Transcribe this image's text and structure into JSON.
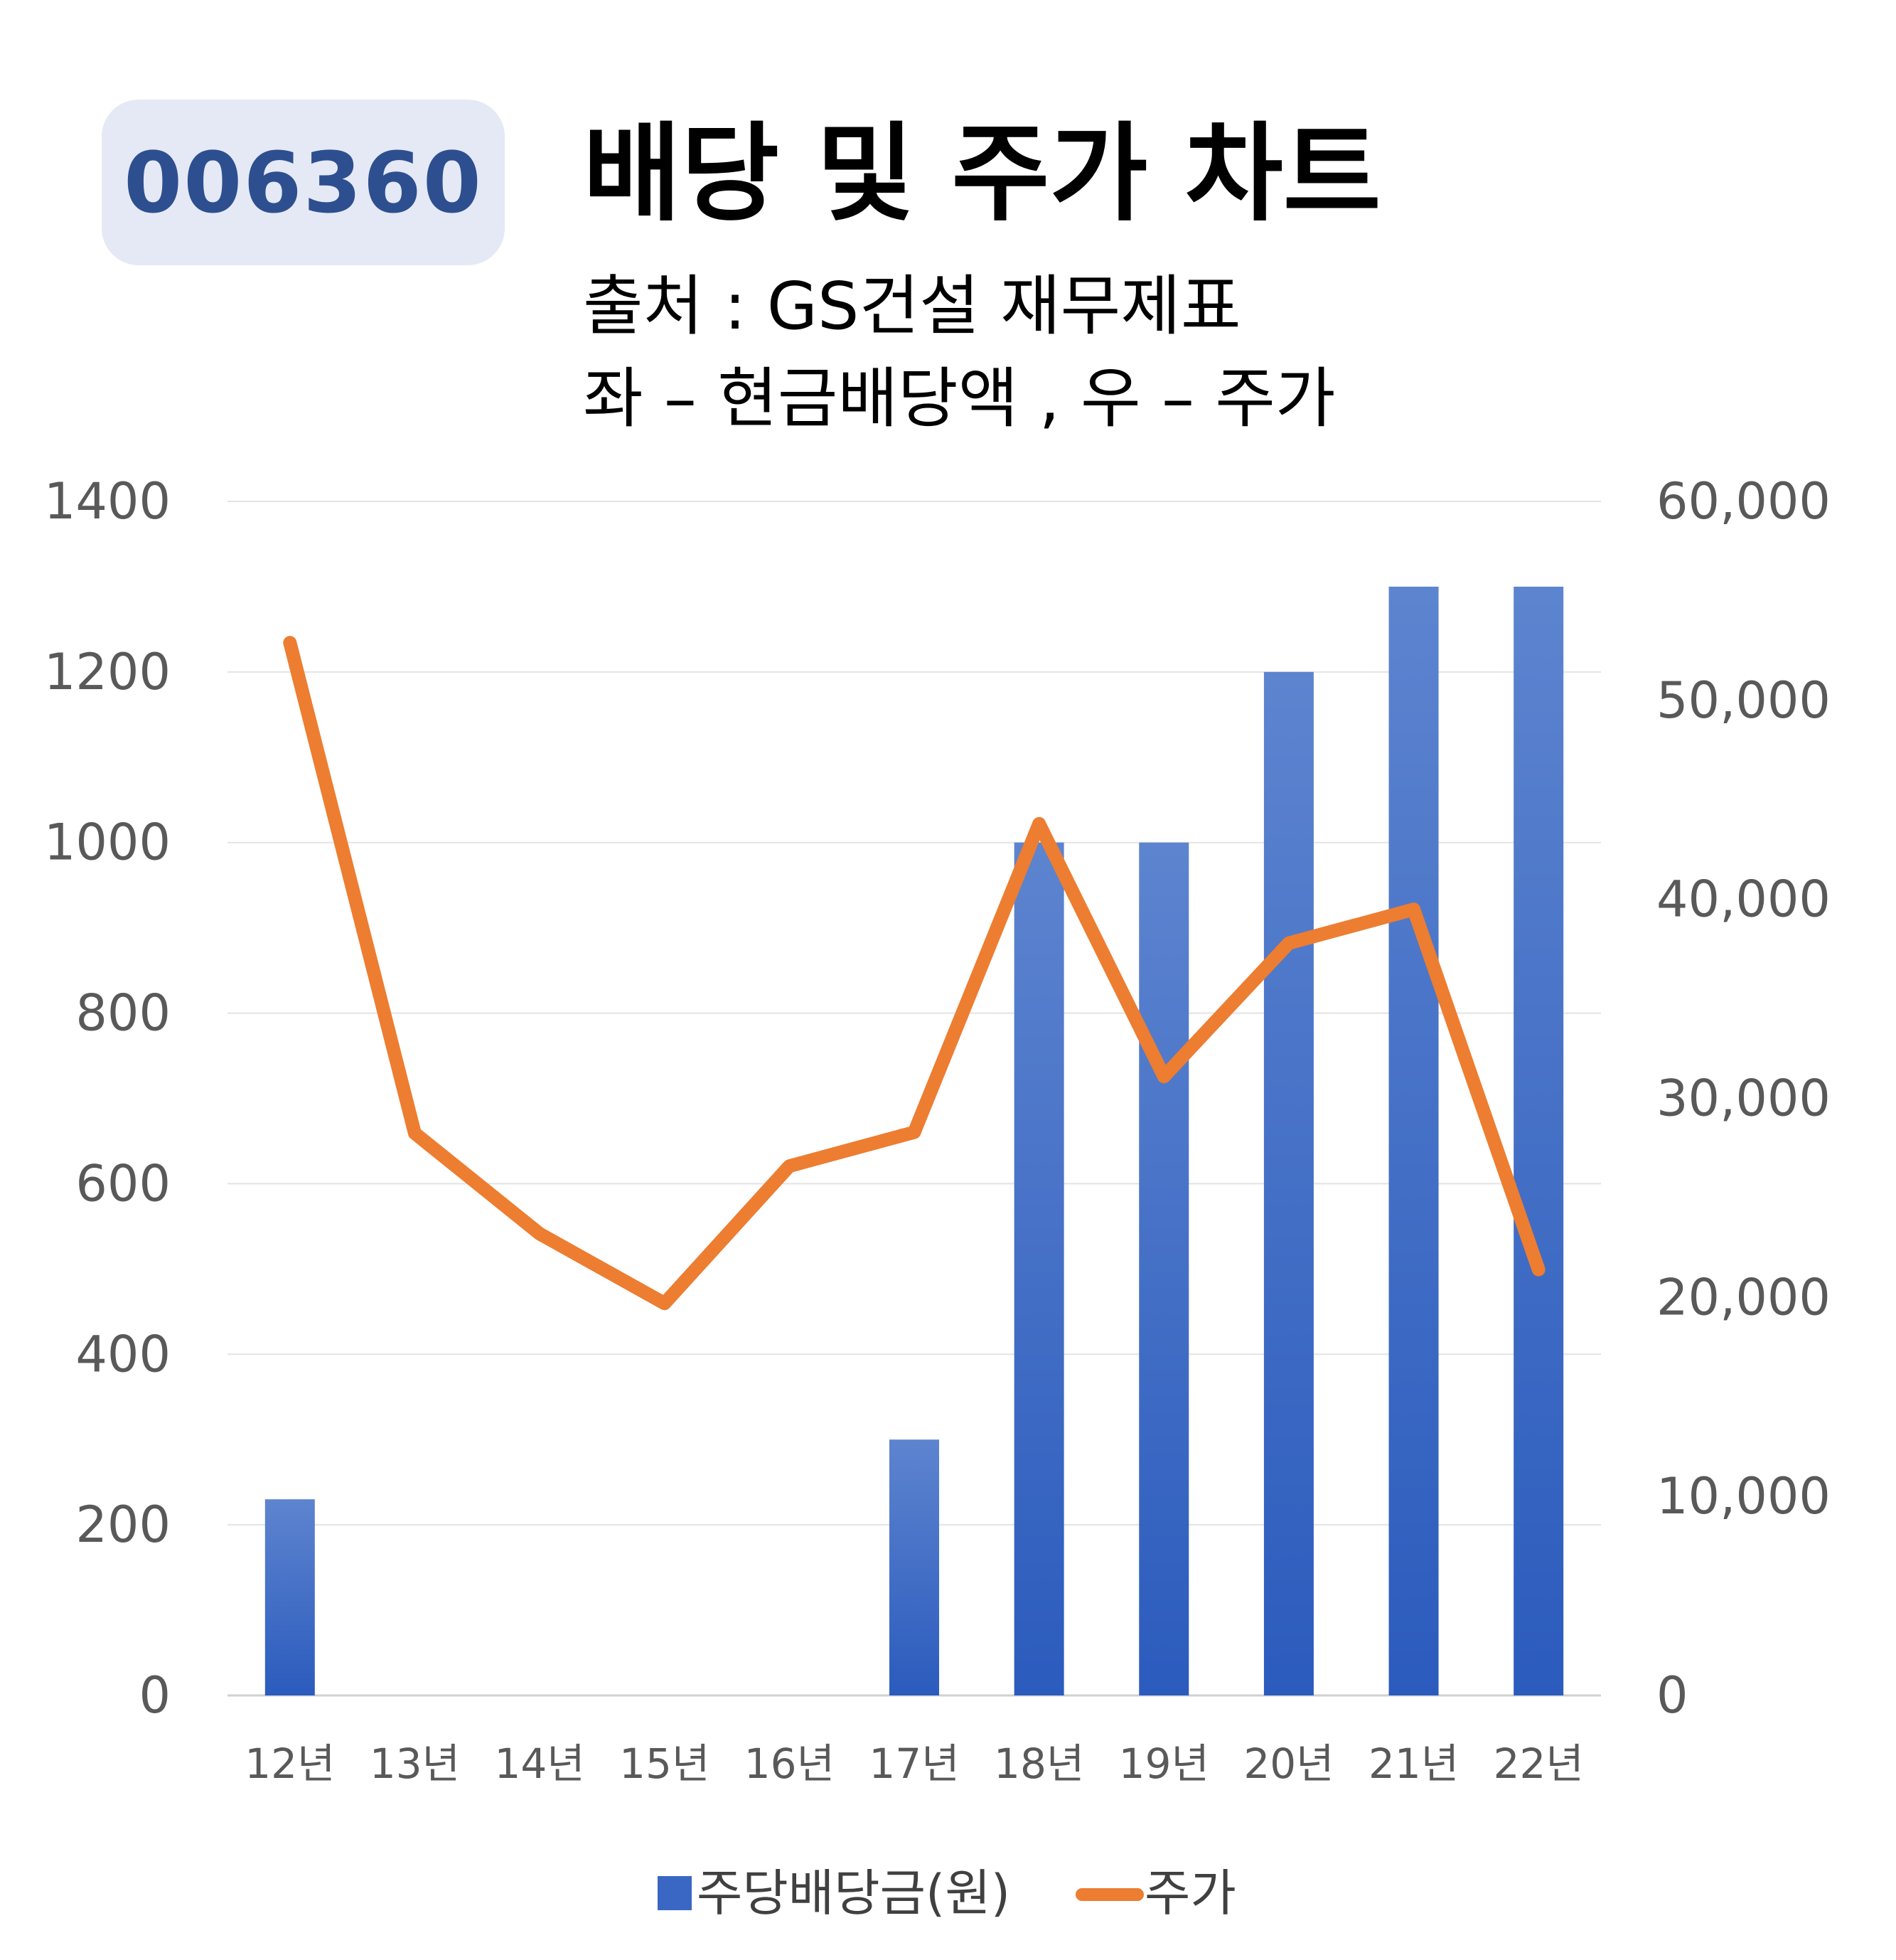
{
  "header": {
    "ticker": "006360",
    "title": "배당 및 주가 차트",
    "source": "출처 : GS건설 재무제표",
    "axis_note": "좌 – 현금배당액  ,  우 – 주가"
  },
  "colors": {
    "bar": "#3a67c4",
    "line": "#ed7d31",
    "badge_bg": "#e4e9f5",
    "badge_text": "#2e4f8f"
  },
  "chart_data": {
    "type": "bar",
    "categories": [
      "12년",
      "13년",
      "14년",
      "15년",
      "16년",
      "17년",
      "18년",
      "19년",
      "20년",
      "21년",
      "22년"
    ],
    "series": [
      {
        "name": "주당배당금(원)",
        "type": "bar",
        "axis": "left",
        "values": [
          230,
          0,
          0,
          0,
          0,
          300,
          1000,
          1000,
          1200,
          1300,
          1300
        ]
      },
      {
        "name": "주가",
        "type": "line",
        "axis": "right",
        "values": [
          52900,
          28250,
          23200,
          19700,
          26600,
          28300,
          43800,
          31100,
          37800,
          39500,
          21400
        ]
      }
    ],
    "y_left": {
      "min": 0,
      "max": 1400,
      "ticks": [
        "0",
        "200",
        "400",
        "600",
        "800",
        "1000",
        "1200",
        "1400"
      ]
    },
    "y_right": {
      "min": 0,
      "max": 60000,
      "ticks": [
        "0",
        "10,000",
        "20,000",
        "30,000",
        "40,000",
        "50,000",
        "60,000"
      ]
    },
    "grid": true,
    "legend": "bottom"
  }
}
